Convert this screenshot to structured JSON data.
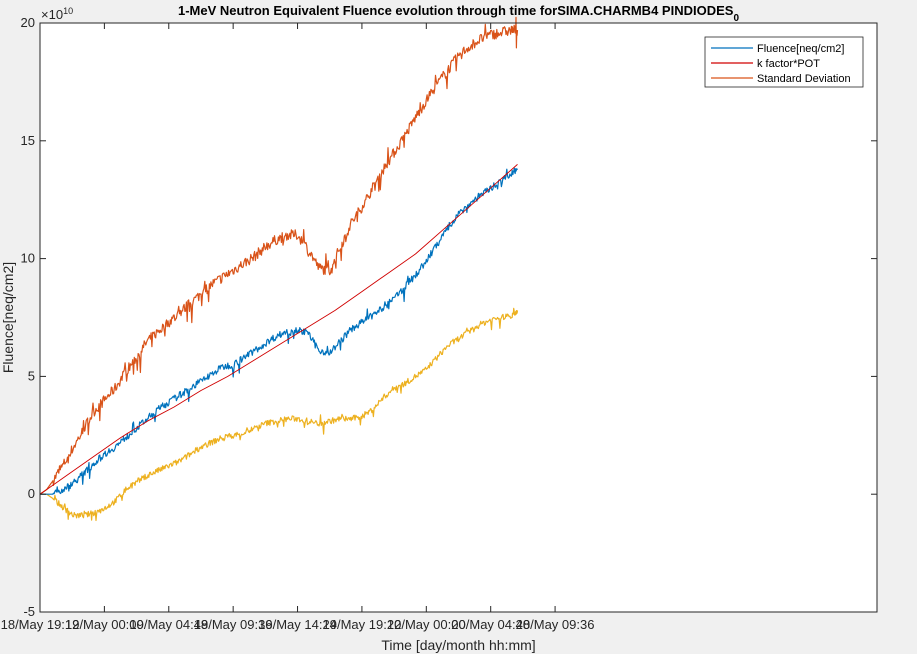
{
  "chart_data": {
    "type": "line",
    "title": "1-MeV Neutron Equivalent Fluence evolution through time forSIMA.CHARMB4 PINDIODES",
    "title_subscript": "0",
    "xlabel": "Time [day/month hh:mm]",
    "ylabel": "Fluence[neq/cm2]",
    "y_exponent_label": "×10",
    "y_exponent_power": "10",
    "x_unit": "hours since 18/May 19:12",
    "xlim": [
      0,
      62.4
    ],
    "ylim": [
      -5,
      20
    ],
    "x_ticks": [
      {
        "x": 0,
        "label": "18/May 19:12"
      },
      {
        "x": 4.8,
        "label": "19/May 00:00"
      },
      {
        "x": 9.6,
        "label": "19/May 04:48"
      },
      {
        "x": 14.4,
        "label": "19/May 09:36"
      },
      {
        "x": 19.2,
        "label": "19/May 14:24"
      },
      {
        "x": 24.0,
        "label": "19/May 19:12"
      },
      {
        "x": 28.8,
        "label": "20/May 00:00"
      },
      {
        "x": 33.6,
        "label": "20/May 04:48"
      },
      {
        "x": 38.4,
        "label": "20/May 09:36"
      }
    ],
    "y_ticks": [
      {
        "y": -5,
        "label": "-5"
      },
      {
        "y": 0,
        "label": "0"
      },
      {
        "y": 5,
        "label": "5"
      },
      {
        "y": 10,
        "label": "10"
      },
      {
        "y": 15,
        "label": "15"
      },
      {
        "y": 20,
        "label": "20"
      }
    ],
    "legend_position": "top-right",
    "series": [
      {
        "name": "Fluence[neq/cm2]",
        "color": "#0072bd",
        "x": [
          0.0,
          0.5,
          1.0,
          1.8,
          2.5,
          3.3,
          4.0,
          4.8,
          5.6,
          6.4,
          7.2,
          8.0,
          8.8,
          9.6,
          10.4,
          11.2,
          12.0,
          12.8,
          13.6,
          14.4,
          15.2,
          16.0,
          16.8,
          17.6,
          18.4,
          19.2,
          20.0,
          20.8,
          21.6,
          22.4,
          23.2,
          24.0,
          24.8,
          25.6,
          26.4,
          27.2,
          28.0,
          28.8,
          29.6,
          30.4,
          31.2,
          32.0,
          32.8,
          33.6,
          34.4,
          35.2,
          35.6
        ],
        "y": [
          0.0,
          0.0,
          0.0,
          0.2,
          0.5,
          0.9,
          1.3,
          1.7,
          2.0,
          2.4,
          2.8,
          3.2,
          3.6,
          3.9,
          4.2,
          4.5,
          4.8,
          5.1,
          5.4,
          5.5,
          5.8,
          6.1,
          6.4,
          6.7,
          6.9,
          7.0,
          6.8,
          6.1,
          6.0,
          6.5,
          7.0,
          7.3,
          7.6,
          7.9,
          8.3,
          8.8,
          9.3,
          9.9,
          10.6,
          11.3,
          11.9,
          12.3,
          12.7,
          13.0,
          13.3,
          13.6,
          13.8
        ],
        "noise": 0.3
      },
      {
        "name": "k factor*POT",
        "color": "#d00000",
        "x": [
          0.0,
          2.0,
          4.0,
          6.0,
          8.0,
          10.0,
          12.0,
          14.0,
          16.0,
          18.0,
          20.0,
          22.0,
          24.0,
          26.0,
          28.0,
          30.0,
          32.0,
          34.0,
          35.6
        ],
        "y": [
          0.0,
          0.8,
          1.6,
          2.4,
          3.1,
          3.7,
          4.4,
          5.0,
          5.7,
          6.4,
          7.1,
          7.8,
          8.6,
          9.4,
          10.2,
          11.2,
          12.2,
          13.2,
          14.0
        ],
        "noise": 0
      },
      {
        "name": "Standard Deviation",
        "color": "#d95319",
        "x": [
          0.0,
          0.5,
          1.0,
          1.8,
          2.5,
          3.3,
          4.0,
          4.8,
          5.6,
          6.4,
          7.2,
          8.0,
          8.8,
          9.6,
          10.4,
          11.2,
          12.0,
          12.8,
          13.6,
          14.4,
          15.2,
          16.0,
          16.8,
          17.6,
          18.4,
          19.2,
          20.0,
          20.8,
          21.6,
          22.4,
          23.2,
          24.0,
          24.8,
          25.6,
          26.4,
          27.2,
          28.0,
          28.8,
          29.6,
          30.4,
          31.2,
          32.0,
          32.8,
          33.6,
          34.4,
          35.2,
          35.6
        ],
        "y": [
          0.0,
          0.2,
          0.6,
          1.3,
          2.0,
          2.8,
          3.5,
          4.0,
          4.5,
          5.2,
          5.8,
          6.5,
          6.9,
          7.3,
          7.7,
          8.1,
          8.5,
          8.9,
          9.2,
          9.5,
          9.8,
          10.1,
          10.5,
          10.8,
          11.0,
          11.0,
          10.4,
          9.6,
          9.5,
          10.5,
          11.5,
          12.2,
          13.0,
          13.8,
          14.5,
          15.2,
          16.0,
          16.7,
          17.4,
          18.0,
          18.6,
          19.0,
          19.3,
          19.5,
          19.6,
          19.7,
          19.7
        ],
        "noise": 0.45
      },
      {
        "name": "",
        "color": "#edb120",
        "x": [
          0.0,
          0.5,
          1.0,
          1.8,
          2.5,
          3.3,
          4.0,
          4.8,
          5.6,
          6.4,
          7.2,
          8.0,
          8.8,
          9.6,
          10.4,
          11.2,
          12.0,
          12.8,
          13.6,
          14.4,
          15.2,
          16.0,
          16.8,
          17.6,
          18.4,
          19.2,
          20.0,
          20.8,
          21.6,
          22.4,
          23.2,
          24.0,
          24.8,
          25.6,
          26.4,
          27.2,
          28.0,
          28.8,
          29.6,
          30.4,
          31.2,
          32.0,
          32.8,
          33.6,
          34.4,
          35.2,
          35.6
        ],
        "y": [
          0.0,
          0.0,
          -0.2,
          -0.6,
          -0.9,
          -0.9,
          -0.8,
          -0.6,
          -0.3,
          0.2,
          0.5,
          0.8,
          1.0,
          1.2,
          1.4,
          1.7,
          2.0,
          2.2,
          2.4,
          2.5,
          2.6,
          2.8,
          3.0,
          3.1,
          3.2,
          3.2,
          3.1,
          3.0,
          3.1,
          3.2,
          3.2,
          3.3,
          3.6,
          4.1,
          4.5,
          4.7,
          5.0,
          5.3,
          5.8,
          6.3,
          6.6,
          6.9,
          7.2,
          7.4,
          7.5,
          7.6,
          7.8
        ],
        "noise": 0.25
      }
    ]
  }
}
